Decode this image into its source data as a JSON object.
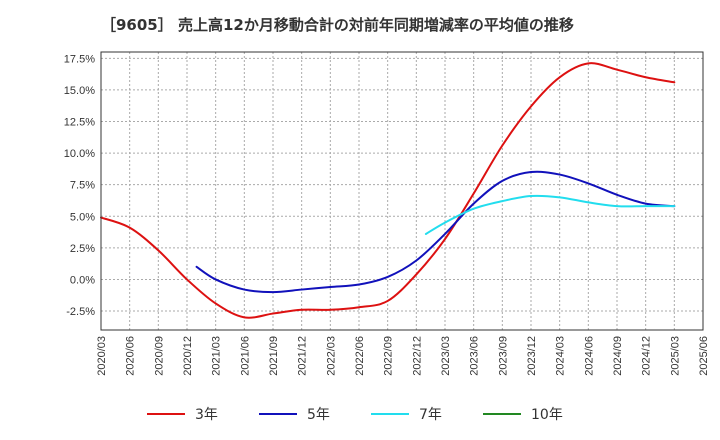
{
  "chart_data": {
    "type": "line",
    "title": "［9605］ 売上高12か月移動合計の対前年同期増減率の平均値の推移",
    "xlabel": "",
    "ylabel": "",
    "ylim": [
      -4.0,
      18.0
    ],
    "y_ticks": [
      "17.5%",
      "15.0%",
      "12.5%",
      "10.0%",
      "7.5%",
      "5.0%",
      "2.5%",
      "0.0%",
      "-2.5%"
    ],
    "y_tick_values": [
      17.5,
      15.0,
      12.5,
      10.0,
      7.5,
      5.0,
      2.5,
      0.0,
      -2.5
    ],
    "x_ticks": [
      "2020/03",
      "2020/06",
      "2020/09",
      "2020/12",
      "2021/03",
      "2021/06",
      "2021/09",
      "2021/12",
      "2022/03",
      "2022/06",
      "2022/09",
      "2022/12",
      "2023/03",
      "2023/06",
      "2023/09",
      "2023/12",
      "2024/03",
      "2024/06",
      "2024/09",
      "2024/12",
      "2025/03",
      "2025/06"
    ],
    "grid": true,
    "legend_position": "bottom",
    "series": [
      {
        "name": "3年",
        "color": "#dd1111",
        "x": [
          "2020/03",
          "2020/06",
          "2020/09",
          "2020/12",
          "2021/03",
          "2021/06",
          "2021/09",
          "2021/12",
          "2022/03",
          "2022/06",
          "2022/09",
          "2022/12",
          "2023/03",
          "2023/06",
          "2023/09",
          "2023/12",
          "2024/03",
          "2024/06",
          "2024/09",
          "2024/12",
          "2025/03"
        ],
        "values": [
          4.9,
          4.1,
          2.3,
          0.0,
          -1.9,
          -3.0,
          -2.7,
          -2.4,
          -2.4,
          -2.2,
          -1.7,
          0.4,
          3.2,
          6.8,
          10.6,
          13.7,
          16.0,
          17.1,
          16.6,
          16.0,
          15.6
        ]
      },
      {
        "name": "5年",
        "color": "#1111bb",
        "x": [
          "2021/01",
          "2021/03",
          "2021/06",
          "2021/09",
          "2021/12",
          "2022/03",
          "2022/06",
          "2022/09",
          "2022/12",
          "2023/03",
          "2023/06",
          "2023/09",
          "2023/12",
          "2024/03",
          "2024/06",
          "2024/09",
          "2024/12",
          "2025/03"
        ],
        "values": [
          1.0,
          0.0,
          -0.8,
          -1.0,
          -0.8,
          -0.6,
          -0.4,
          0.2,
          1.5,
          3.6,
          6.0,
          7.8,
          8.5,
          8.3,
          7.6,
          6.7,
          6.0,
          5.8
        ]
      },
      {
        "name": "7年",
        "color": "#22ddee",
        "x": [
          "2023/01",
          "2023/03",
          "2023/06",
          "2023/09",
          "2023/12",
          "2024/03",
          "2024/06",
          "2024/09",
          "2024/12",
          "2025/03"
        ],
        "values": [
          3.6,
          4.5,
          5.6,
          6.2,
          6.6,
          6.5,
          6.1,
          5.8,
          5.8,
          5.8
        ]
      },
      {
        "name": "10年",
        "color": "#228822",
        "x": [],
        "values": []
      }
    ]
  }
}
